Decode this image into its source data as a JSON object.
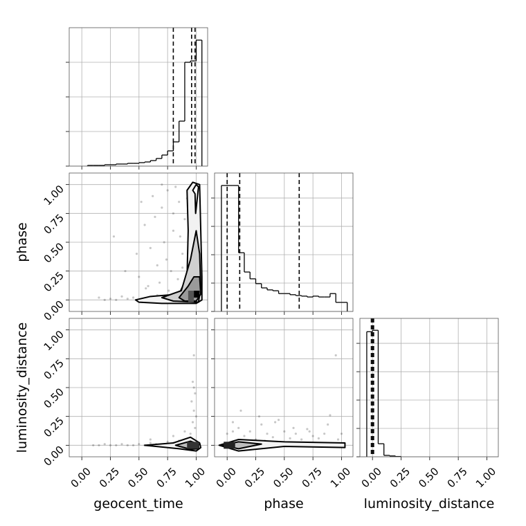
{
  "chart_data": [
    {
      "type": "histogram",
      "color": "#000000",
      "bins": [
        0.05,
        0.1,
        0.15,
        0.2,
        0.25,
        0.3,
        0.35,
        0.4,
        0.45,
        0.5,
        0.55,
        0.6,
        0.65,
        0.7,
        0.75,
        0.8,
        0.85,
        0.9,
        0.95,
        1.0,
        1.05
      ],
      "values": [
        0.02,
        0.02,
        0.02,
        0.04,
        0.04,
        0.06,
        0.06,
        0.08,
        0.08,
        0.1,
        0.12,
        0.16,
        0.22,
        0.32,
        0.44,
        0.7,
        1.3,
        3.0,
        3.04,
        3.64
      ],
      "quantiles": [
        0.8,
        0.96,
        0.99
      ],
      "xlim": [
        -0.11,
        1.1
      ],
      "ylim": [
        0,
        4
      ],
      "xticks": [
        0,
        0.25,
        0.5,
        0.75,
        1
      ],
      "yticks": [
        0,
        1,
        2,
        3
      ],
      "grid": true
    },
    {
      "type": "hist2d",
      "color": "#000000",
      "x": [
        0.62,
        0.7,
        0.75,
        0.8,
        0.85,
        0.88,
        0.9,
        0.72,
        0.66,
        0.55,
        0.5,
        0.45,
        0.4,
        0.35,
        0.3,
        0.25,
        0.2,
        0.15,
        0.6,
        0.68,
        0.78,
        0.82,
        0.86,
        0.92,
        0.58,
        0.64,
        0.74,
        0.84,
        0.9,
        0.48,
        0.38,
        0.28,
        0.52,
        0.7,
        0.8,
        0.88,
        0.76,
        0.66,
        0.56,
        0.94
      ],
      "y": [
        0.9,
        0.8,
        0.95,
        0.6,
        0.85,
        0.4,
        0.7,
        0.5,
        0.3,
        0.65,
        0.2,
        0.02,
        0.01,
        0.03,
        0.0,
        0.01,
        0.0,
        0.02,
        0.45,
        0.15,
        0.25,
        0.98,
        0.55,
        0.88,
        0.12,
        0.72,
        0.35,
        0.18,
        0.05,
        0.4,
        0.25,
        0.55,
        0.85,
        1.0,
        0.75,
        0.28,
        0.08,
        0.04,
        0.1,
        0.62
      ],
      "contours": [
        {
          "fill": "#f2f2f2",
          "x": [
            0.47,
            0.6,
            0.85,
            0.92,
            0.93,
            0.92,
            0.97,
            1.03,
            1.04,
            1.05,
            1.05,
            1.0,
            0.7,
            0.5
          ],
          "y": [
            0.0,
            0.03,
            0.05,
            0.2,
            0.6,
            0.95,
            1.02,
            1.0,
            0.6,
            0.2,
            0.0,
            -0.03,
            -0.03,
            -0.02
          ]
        },
        {
          "fill": "#cfcfcf",
          "x": [
            0.7,
            0.87,
            0.95,
            1.0,
            1.03,
            1.04,
            1.02,
            0.8
          ],
          "y": [
            0.02,
            0.08,
            0.35,
            0.6,
            0.4,
            0.1,
            -0.02,
            -0.01
          ]
        },
        {
          "fill": "#9a9a9a",
          "x": [
            0.85,
            0.93,
            0.98,
            1.03,
            1.04,
            1.0,
            0.9
          ],
          "y": [
            0.02,
            0.12,
            0.2,
            0.2,
            0.05,
            -0.01,
            -0.01
          ]
        },
        {
          "fill": "#ffffff",
          "x": [
            0.97,
            0.99,
            0.995,
            1.02,
            1.0
          ],
          "y": [
            0.95,
            0.92,
            0.75,
            0.98,
            1.0
          ]
        }
      ],
      "cells": [
        {
          "x": [
            0.93,
            0.98
          ],
          "y": [
            -0.02,
            0.08
          ],
          "color": "#555555"
        },
        {
          "x": [
            0.98,
            1.03
          ],
          "y": [
            0.02,
            0.08
          ],
          "color": "#000000"
        }
      ],
      "xlim": [
        -0.11,
        1.1
      ],
      "ylim": [
        -0.1,
        1.1
      ],
      "xticks": [
        0,
        0.25,
        0.5,
        0.75,
        1
      ],
      "yticks": [
        {
          "value": 0,
          "label": "0.00"
        },
        {
          "value": 0.25,
          "label": "0.25"
        },
        {
          "value": 0.5,
          "label": "0.50"
        },
        {
          "value": 0.75,
          "label": "0.75"
        },
        {
          "value": 1,
          "label": "1.00"
        }
      ],
      "ylabel": "phase",
      "grid": true
    },
    {
      "type": "histogram",
      "color": "#000000",
      "bins": [
        -0.05,
        0.0,
        0.05,
        0.1,
        0.15,
        0.2,
        0.25,
        0.3,
        0.35,
        0.4,
        0.45,
        0.5,
        0.55,
        0.6,
        0.65,
        0.7,
        0.75,
        0.8,
        0.85,
        0.9,
        0.95,
        1.0,
        1.05
      ],
      "values": [
        4.44,
        4.44,
        4.44,
        2.07,
        1.39,
        1.15,
        0.98,
        0.83,
        0.76,
        0.73,
        0.63,
        0.63,
        0.59,
        0.56,
        0.54,
        0.51,
        0.54,
        0.51,
        0.51,
        0.63,
        0.32,
        0.32
      ],
      "quantiles": [
        0.0,
        0.11,
        0.63
      ],
      "xlim": [
        -0.11,
        1.1
      ],
      "ylim": [
        0,
        4.88
      ],
      "xticks": [
        0,
        0.25,
        0.5,
        0.75,
        1
      ],
      "yticks": [
        0,
        1,
        2,
        3,
        4
      ],
      "grid": true
    },
    {
      "type": "hist2d",
      "color": "#000000",
      "x": [
        0.1,
        0.15,
        0.2,
        0.25,
        0.3,
        0.35,
        0.4,
        0.45,
        0.5,
        0.55,
        0.6,
        0.65,
        0.7,
        0.75,
        0.8,
        0.85,
        0.9,
        0.95,
        0.97,
        0.98,
        0.99,
        0.97,
        0.98,
        0.99,
        1.0,
        0.96,
        0.98,
        0.6,
        0.8,
        0.9
      ],
      "y": [
        0.0,
        0.0,
        0.01,
        0.0,
        0.0,
        0.01,
        0.0,
        0.0,
        0.01,
        0.0,
        0.02,
        0.01,
        0.0,
        0.03,
        0.02,
        0.04,
        0.05,
        0.1,
        0.2,
        0.3,
        0.45,
        0.55,
        0.78,
        0.15,
        0.25,
        0.38,
        0.5,
        0.05,
        0.08,
        0.12
      ],
      "contours": [
        {
          "fill": "#f2f2f2",
          "x": [
            0.55,
            0.8,
            0.95,
            1.03,
            1.04,
            1.0,
            0.85
          ],
          "y": [
            0.0,
            0.02,
            0.07,
            0.02,
            -0.02,
            -0.05,
            -0.03
          ]
        },
        {
          "fill": "#bdbdbd",
          "x": [
            0.82,
            0.95,
            1.02,
            1.02,
            0.95
          ],
          "y": [
            0.0,
            0.035,
            0.01,
            -0.03,
            -0.035
          ]
        }
      ],
      "cells": [
        {
          "x": [
            0.92,
            1.02
          ],
          "y": [
            -0.03,
            0.03
          ],
          "color": "#333333"
        }
      ],
      "xlim": [
        -0.11,
        1.1
      ],
      "ylim": [
        -0.1,
        1.1
      ],
      "xticks": [
        {
          "value": 0,
          "label": "0.00"
        },
        {
          "value": 0.25,
          "label": "0.25"
        },
        {
          "value": 0.5,
          "label": "0.50"
        },
        {
          "value": 0.75,
          "label": "0.75"
        },
        {
          "value": 1,
          "label": "1.00"
        }
      ],
      "yticks": [
        {
          "value": 0,
          "label": "0.00"
        },
        {
          "value": 0.25,
          "label": "0.25"
        },
        {
          "value": 0.5,
          "label": "0.50"
        },
        {
          "value": 0.75,
          "label": "0.75"
        },
        {
          "value": 1,
          "label": "1.00"
        }
      ],
      "xlabel": "geocent_time",
      "ylabel": "luminosity_distance",
      "grid": true
    },
    {
      "type": "hist2d",
      "color": "#000000",
      "x": [
        0.0,
        0.05,
        0.1,
        0.15,
        0.2,
        0.25,
        0.3,
        0.35,
        0.4,
        0.45,
        0.5,
        0.55,
        0.6,
        0.65,
        0.7,
        0.75,
        0.8,
        0.85,
        0.9,
        0.95,
        1.0,
        0.12,
        0.28,
        0.42,
        0.58,
        0.72,
        0.88,
        0.97,
        0.33,
        0.05
      ],
      "y": [
        0.1,
        0.2,
        0.15,
        0.08,
        0.12,
        0.05,
        0.18,
        0.1,
        0.07,
        0.22,
        0.12,
        0.06,
        0.1,
        0.05,
        0.14,
        0.08,
        0.06,
        0.1,
        0.26,
        0.78,
        0.1,
        0.3,
        0.25,
        0.2,
        0.15,
        0.12,
        0.18,
        0.05,
        0.04,
        0.12
      ],
      "contours": [
        {
          "fill": "#f2f2f2",
          "x": [
            -0.07,
            0.1,
            0.5,
            1.03,
            1.03,
            0.5,
            0.1
          ],
          "y": [
            0.0,
            0.05,
            0.03,
            0.02,
            -0.02,
            -0.01,
            -0.05
          ]
        },
        {
          "fill": "#bdbdbd",
          "x": [
            -0.05,
            0.1,
            0.3,
            0.1
          ],
          "y": [
            0.0,
            0.03,
            0.01,
            -0.03
          ]
        }
      ],
      "cells": [
        {
          "x": [
            -0.03,
            0.07
          ],
          "y": [
            -0.03,
            0.03
          ],
          "color": "#222222"
        }
      ],
      "xlim": [
        -0.11,
        1.1
      ],
      "ylim": [
        -0.1,
        1.1
      ],
      "xticks": [
        {
          "value": 0,
          "label": "0.00"
        },
        {
          "value": 0.25,
          "label": "0.25"
        },
        {
          "value": 0.5,
          "label": "0.50"
        },
        {
          "value": 0.75,
          "label": "0.75"
        },
        {
          "value": 1,
          "label": "1.00"
        }
      ],
      "yticks": [
        0,
        0.25,
        0.5,
        0.75,
        1
      ],
      "xlabel": "phase",
      "grid": true
    },
    {
      "type": "histogram",
      "color": "#000000",
      "bins": [
        -0.05,
        0.0,
        0.05,
        0.1,
        0.15,
        0.2,
        0.25
      ],
      "values": [
        4.41,
        4.46,
        0.46,
        0.05,
        0.03,
        0.01
      ],
      "quantiles": [
        -0.01,
        0.0,
        0.01
      ],
      "xlim": [
        -0.11,
        1.1
      ],
      "ylim": [
        0,
        4.88
      ],
      "xticks": [
        {
          "value": 0,
          "label": "0.00"
        },
        {
          "value": 0.25,
          "label": "0.25"
        },
        {
          "value": 0.5,
          "label": "0.50"
        },
        {
          "value": 0.75,
          "label": "0.75"
        },
        {
          "value": 1,
          "label": "1.00"
        }
      ],
      "yticks": [
        0,
        1,
        2,
        3,
        4
      ],
      "xlabel": "luminosity_distance",
      "grid": true
    }
  ]
}
